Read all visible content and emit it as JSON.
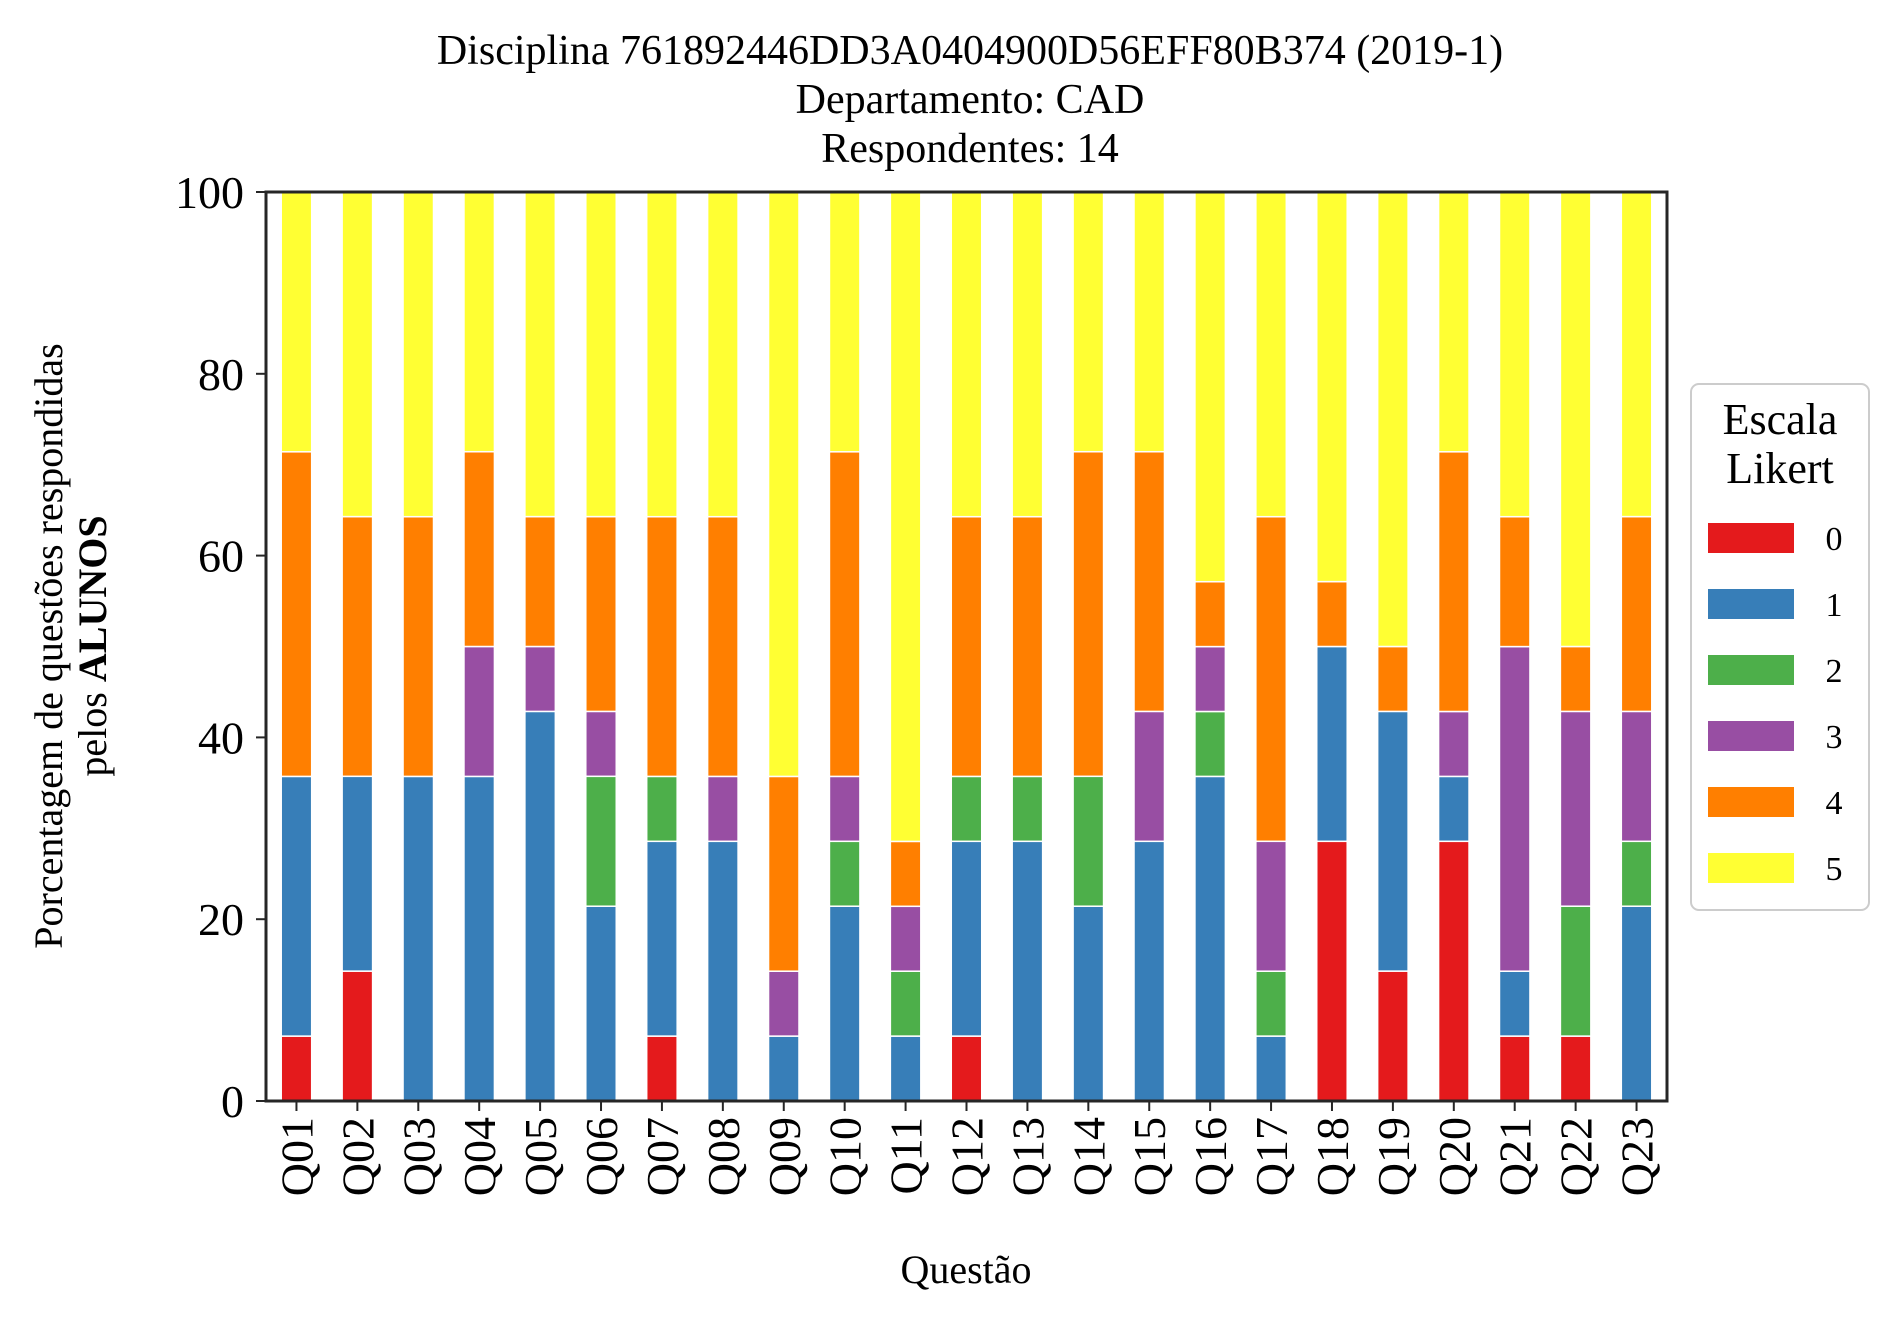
{
  "chart_data": {
    "type": "bar",
    "stacked": true,
    "title": [
      "Disciplina 761892446DD3A0404900D56EFF80B374 (2019-1)",
      "Departamento: CAD",
      "Respondentes: 14"
    ],
    "xlabel": "Questão",
    "ylabel_line1": "Porcentagem de questões respondidas",
    "ylabel_line2_prefix": "pelos ",
    "ylabel_line2_bold": "ALUNOS",
    "ylim": [
      0,
      100
    ],
    "yticks": [
      0,
      20,
      40,
      60,
      80,
      100
    ],
    "grid": false,
    "legend": {
      "title": [
        "Escala",
        "Likert"
      ],
      "placement": "right"
    },
    "categories": [
      "Q01",
      "Q02",
      "Q03",
      "Q04",
      "Q05",
      "Q06",
      "Q07",
      "Q08",
      "Q09",
      "Q10",
      "Q11",
      "Q12",
      "Q13",
      "Q14",
      "Q15",
      "Q16",
      "Q17",
      "Q18",
      "Q19",
      "Q20",
      "Q21",
      "Q22",
      "Q23"
    ],
    "series": [
      {
        "name": "0",
        "color": "#e41a1c",
        "values": [
          7.14,
          14.29,
          0,
          0,
          0,
          0,
          7.14,
          0,
          0,
          0,
          0,
          7.14,
          0,
          0,
          0,
          0,
          0,
          28.57,
          14.29,
          28.57,
          7.14,
          7.14,
          0
        ]
      },
      {
        "name": "1",
        "color": "#377eb8",
        "values": [
          28.57,
          21.43,
          35.71,
          35.71,
          42.86,
          21.43,
          21.43,
          28.57,
          7.14,
          21.43,
          7.14,
          21.43,
          28.57,
          21.43,
          28.57,
          35.71,
          7.14,
          21.43,
          28.57,
          7.14,
          7.14,
          0,
          21.43
        ]
      },
      {
        "name": "2",
        "color": "#4daf4a",
        "values": [
          0,
          0,
          0,
          0,
          0,
          14.29,
          7.14,
          0,
          0,
          7.14,
          7.14,
          7.14,
          7.14,
          14.29,
          0,
          7.14,
          7.14,
          0,
          0,
          0,
          0,
          14.29,
          7.14
        ]
      },
      {
        "name": "3",
        "color": "#984ea3",
        "values": [
          0,
          0,
          0,
          14.29,
          7.14,
          7.14,
          0,
          7.14,
          7.14,
          7.14,
          7.14,
          0,
          0,
          0,
          14.29,
          7.14,
          14.29,
          0,
          0,
          7.14,
          35.71,
          21.43,
          14.29
        ]
      },
      {
        "name": "4",
        "color": "#ff7f00",
        "values": [
          35.71,
          28.57,
          28.57,
          21.43,
          14.29,
          21.43,
          28.57,
          28.57,
          21.43,
          35.71,
          7.14,
          28.57,
          28.57,
          35.71,
          28.57,
          7.14,
          35.71,
          7.14,
          7.14,
          28.57,
          14.29,
          7.14,
          21.43
        ]
      },
      {
        "name": "5",
        "color": "#ffff33",
        "values": [
          28.57,
          35.71,
          35.71,
          28.57,
          35.71,
          35.71,
          35.71,
          35.71,
          64.29,
          28.57,
          71.43,
          35.71,
          35.71,
          28.57,
          28.57,
          42.86,
          35.71,
          42.86,
          50.0,
          28.57,
          35.71,
          50.0,
          35.71
        ]
      }
    ]
  }
}
